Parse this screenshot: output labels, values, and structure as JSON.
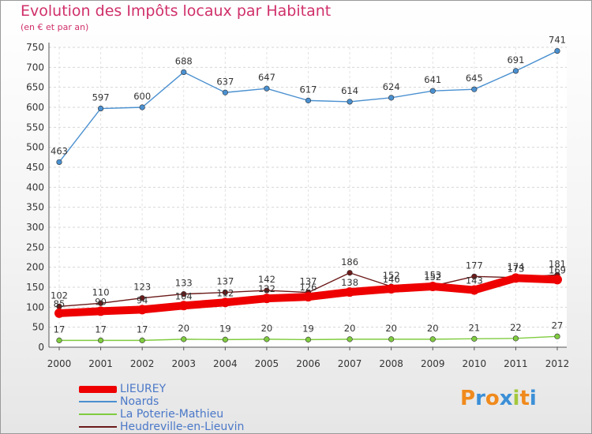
{
  "header": {
    "title": "Evolution des Impôts locaux par Habitant",
    "subtitle": "(en € et par an)"
  },
  "logo": {
    "letters": [
      "P",
      "r",
      "o",
      "x",
      "i",
      "t",
      "i"
    ],
    "colors": [
      "#f08a1c",
      "#3b8fd6",
      "#f08a1c",
      "#3b8fd6",
      "#a4c83c",
      "#f08a1c",
      "#3b8fd6"
    ]
  },
  "chart_data": {
    "type": "line",
    "title": "Evolution des Impôts locaux par Habitant",
    "subtitle": "(en € et par an)",
    "xlabel": "",
    "ylabel": "",
    "categories": [
      "2000",
      "2001",
      "2002",
      "2003",
      "2004",
      "2005",
      "2006",
      "2007",
      "2008",
      "2009",
      "2010",
      "2011",
      "2012"
    ],
    "ylim": [
      0,
      750
    ],
    "yticks": [
      0,
      50,
      100,
      150,
      200,
      250,
      300,
      350,
      400,
      450,
      500,
      550,
      600,
      650,
      700,
      750
    ],
    "grid": true,
    "legend_position": "bottom-left",
    "series": [
      {
        "name": "LIEUREY",
        "color": "#ee0000",
        "values": [
          85,
          90,
          94,
          104,
          112,
          122,
          126,
          138,
          146,
          152,
          143,
          173,
          169
        ],
        "labels": [
          "85",
          "90",
          "94",
          "104",
          "112",
          "122",
          "126",
          "138",
          "146",
          "152",
          "143",
          "173",
          "169"
        ]
      },
      {
        "name": "Noards",
        "color": "#4a90d0",
        "values": [
          463,
          597,
          600,
          688,
          637,
          647,
          617,
          614,
          624,
          641,
          645,
          691,
          741
        ],
        "labels": [
          "463",
          "597",
          "600",
          "688",
          "637",
          "647",
          "617",
          "614",
          "624",
          "641",
          "645",
          "691",
          "741"
        ]
      },
      {
        "name": "La Poterie-Mathieu",
        "color": "#80cc40",
        "values": [
          17,
          17,
          17,
          20,
          19,
          20,
          19,
          20,
          20,
          20,
          21,
          22,
          27
        ],
        "labels": [
          "17",
          "17",
          "17",
          "20",
          "19",
          "20",
          "19",
          "20",
          "20",
          "20",
          "21",
          "22",
          "27"
        ]
      },
      {
        "name": "Heudreville-en-Lieuvin",
        "color": "#6b1a1a",
        "values": [
          102,
          110,
          123,
          133,
          137,
          142,
          137,
          186,
          152,
          153,
          177,
          174,
          181
        ],
        "labels": [
          "102",
          "110",
          "123",
          "133",
          "137",
          "142",
          "137",
          "186",
          "152",
          "153",
          "177",
          "174",
          "181"
        ]
      }
    ]
  }
}
